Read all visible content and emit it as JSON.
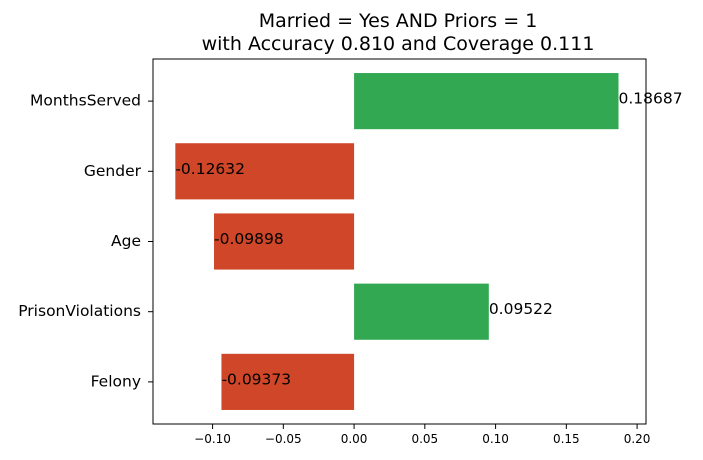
{
  "chart_data": {
    "type": "bar",
    "orientation": "horizontal",
    "title": [
      "Married = Yes AND Priors = 1",
      "with Accuracy 0.810 and Coverage 0.111"
    ],
    "categories": [
      "MonthsServed",
      "Gender",
      "Age",
      "PrisonViolations",
      "Felony"
    ],
    "values": [
      0.18687,
      -0.12632,
      -0.09898,
      0.09522,
      -0.09373
    ],
    "value_labels": [
      "0.18687",
      "-0.12632",
      "-0.09898",
      "0.09522",
      "-0.09373"
    ],
    "xticks": [
      -0.1,
      -0.05,
      0.0,
      0.05,
      0.1,
      0.15,
      0.2
    ],
    "xtick_labels": [
      "−0.10",
      "−0.05",
      "0.00",
      "0.05",
      "0.10",
      "0.15",
      "0.20"
    ],
    "xlim": [
      -0.1421,
      0.2063
    ],
    "xlabel": "",
    "ylabel": "",
    "grid": false,
    "colors": {
      "positive": "#32a852",
      "negative": "#d04628"
    }
  }
}
